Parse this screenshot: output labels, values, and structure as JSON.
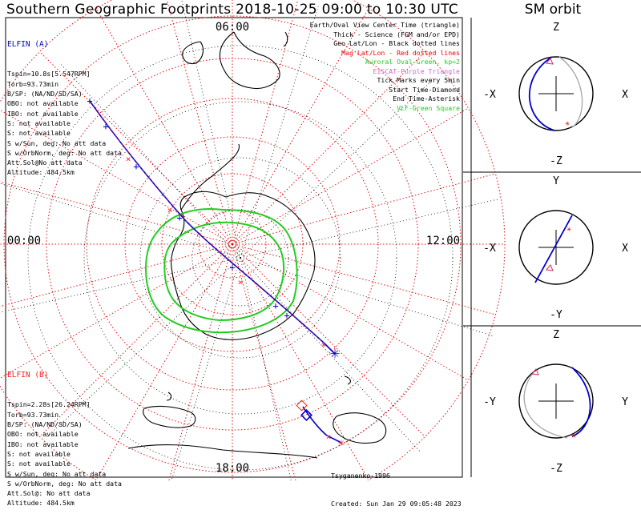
{
  "title": "Southern Geographic Footprints 2018-10-25 09:00 to 10:30 UTC",
  "sm_title": "SM orbit",
  "colors": {
    "grid": "#e01010",
    "coast": "#000000",
    "auroral": "#22cc22",
    "track": "#0000cc",
    "footprint_b": "#ff2020",
    "elfin_a": "#0000cc",
    "elfin_b": "#ff2020",
    "legend_red": "#ee0000",
    "legend_green": "#22cc22",
    "legend_purple": "#cc66cc"
  },
  "clock_labels": {
    "top": "06:00",
    "left": "00:00",
    "right": "12:00",
    "bottom": "18:00"
  },
  "elfin_a": {
    "header": "ELFIN (A)",
    "lines": [
      "Tspin=10.8s[5.547RPM]",
      "Torb=93.73min",
      "B/SP: (NA/ND/SD/SA)",
      "OBO: not available",
      "IBO: not available",
      "S: not available",
      "S: not available",
      "S w/Sun, deg: No att data",
      "S w/OrbNorm, deg: No att data",
      "Att.Sol@No att data",
      "Altitude: 484.5km"
    ]
  },
  "elfin_b": {
    "header": "ELFIN (B)",
    "lines": [
      "Tspin=2.28s[26.24RPM]",
      "Torb=93.73min",
      "B/SP: (NA/ND/SD/SA)",
      "OBO: not available",
      "IBO: not available",
      "S: not available",
      "S: not available",
      "S w/Sun, deg: No att data",
      "S w/OrbNorm, deg: No att data",
      "Att.Sol@: No att data",
      "Altitude: 484.5km"
    ]
  },
  "legend": [
    {
      "text": "Earth/Oval View Center Time (triangle)",
      "color": "#000000"
    },
    {
      "text": "Thick - Science (FGM and/or EPD)",
      "color": "#000000"
    },
    {
      "text": "Geo Lat/Lon - Black dotted lines",
      "color": "#000000"
    },
    {
      "text": "Mag Lat/Lon - Red dotted lines",
      "color": "#ee0000"
    },
    {
      "text": "Auroral Oval-Green, kp=2",
      "color": "#22cc22"
    },
    {
      "text": "EISCAT-Purple Triangle",
      "color": "#cc66cc"
    },
    {
      "text": "Tick Marks every 5min",
      "color": "#000000"
    },
    {
      "text": "Start Time-Diamond",
      "color": "#000000"
    },
    {
      "text": "End Time-Asterisk",
      "color": "#000000"
    },
    {
      "text": "VLF-Green Square",
      "color": "#22cc22"
    }
  ],
  "credit": {
    "author": "Tsyganenko-1996",
    "created": "Created: Sun Jan 29 09:05:48 2023"
  },
  "sm_panels": [
    {
      "name": "xz",
      "top": "Z",
      "bottom": "-Z",
      "left": "-X",
      "right": "X"
    },
    {
      "name": "xy",
      "top": "Y",
      "bottom": "-Y",
      "left": "-X",
      "right": "X"
    },
    {
      "name": "yz",
      "top": "Z",
      "bottom": "-Z",
      "left": "-Y",
      "right": "Y"
    }
  ],
  "chart_data": {
    "type": "polar-map",
    "projection": "south polar stereographic, magnetic local time clock",
    "mag_lat_circles_deg": [
      -80,
      -70,
      -60,
      -50,
      -40,
      -30,
      -20
    ],
    "mlt_spokes_hours": [
      0,
      1,
      2,
      3,
      4,
      5,
      6,
      7,
      8,
      9,
      10,
      11,
      12,
      13,
      14,
      15,
      16,
      17,
      18,
      19,
      20,
      21,
      22,
      23
    ],
    "auroral_oval_kp": 2,
    "tick_interval_min": 5,
    "track_a_note": "ELFIN-A footprint track, start top-left, end (asterisk) lower right",
    "track_b_note": "ELFIN-B footprint track near 18:00 sector"
  }
}
